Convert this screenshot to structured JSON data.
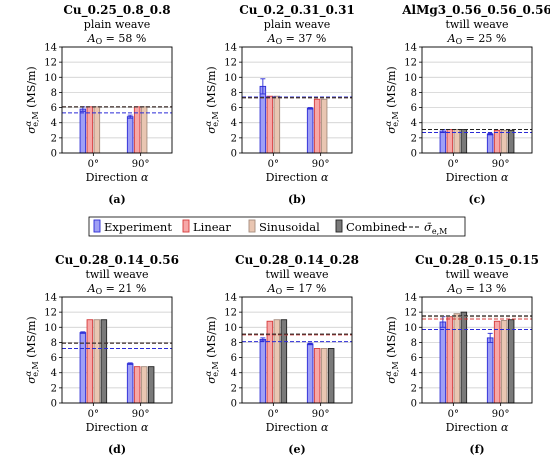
{
  "series_styles": [
    {
      "name": "Experiment",
      "fill": "#9f9ff5",
      "stroke": "#2b2bd6"
    },
    {
      "name": "Linear",
      "fill": "#f7a7a7",
      "stroke": "#d43a3a"
    },
    {
      "name": "Sinusoidal",
      "fill": "#e9c6b2",
      "stroke": "#a58c7e"
    },
    {
      "name": "Combined",
      "fill": "#7a7a7a",
      "stroke": "#222222"
    }
  ],
  "legend": {
    "entries": [
      "Experiment",
      "Linear",
      "Sinusoidal",
      "Combined"
    ],
    "mean_label": "σ̄e,M",
    "mean_color": "#000000"
  },
  "chart_data": [
    {
      "type": "bar",
      "panel_label": "(a)",
      "title": "Cu_0.25_0.8_0.8",
      "subtitle": "plain weave",
      "area_label": "AO = 58 %",
      "categories": [
        "0°",
        "90°"
      ],
      "xlabel": "Direction α",
      "ylabel": "σαe,M (MS/m)",
      "ylim": [
        0,
        14
      ],
      "yticks": [
        0,
        2,
        4,
        6,
        8,
        10,
        12,
        14
      ],
      "grid": true,
      "series": [
        {
          "name": "Experiment",
          "values": [
            5.8,
            4.8
          ],
          "errors": [
            0.3,
            0.2
          ]
        },
        {
          "name": "Linear",
          "values": [
            6.1,
            6.1
          ],
          "errors": [
            0,
            0
          ]
        },
        {
          "name": "Sinusoidal",
          "values": [
            6.1,
            6.1
          ],
          "errors": [
            0,
            0
          ]
        },
        {
          "name": "Combined",
          "values": [
            0,
            0
          ],
          "errors": [
            0,
            0
          ]
        }
      ],
      "mean_lines": [
        {
          "series": "Experiment",
          "value": 5.3
        },
        {
          "series": "Linear",
          "value": 6.1
        },
        {
          "series": "Sinusoidal",
          "value": 6.1
        },
        {
          "series": "Combined",
          "value": 6.1
        }
      ]
    },
    {
      "type": "bar",
      "panel_label": "(b)",
      "title": "Cu_0.2_0.31_0.31",
      "subtitle": "plain weave",
      "area_label": "AO = 37 %",
      "categories": [
        "0°",
        "90°"
      ],
      "xlabel": "Direction α",
      "ylabel": "σαe,M (MS/m)",
      "ylim": [
        0,
        14
      ],
      "yticks": [
        0,
        2,
        4,
        6,
        8,
        10,
        12,
        14
      ],
      "grid": true,
      "series": [
        {
          "name": "Experiment",
          "values": [
            8.8,
            5.9
          ],
          "errors": [
            1.0,
            0.1
          ]
        },
        {
          "name": "Linear",
          "values": [
            7.5,
            7.1
          ],
          "errors": [
            0,
            0
          ]
        },
        {
          "name": "Sinusoidal",
          "values": [
            7.5,
            7.1
          ],
          "errors": [
            0,
            0
          ]
        },
        {
          "name": "Combined",
          "values": [
            0,
            0
          ],
          "errors": [
            0,
            0
          ]
        }
      ],
      "mean_lines": [
        {
          "series": "Experiment",
          "value": 7.4
        },
        {
          "series": "Linear",
          "value": 7.3
        },
        {
          "series": "Sinusoidal",
          "value": 7.3
        },
        {
          "series": "Combined",
          "value": 7.3
        }
      ]
    },
    {
      "type": "bar",
      "panel_label": "(c)",
      "title": "AlMg3_0.56_0.56_0.56",
      "subtitle": "twill weave",
      "area_label": "AO = 25 %",
      "categories": [
        "0°",
        "90°"
      ],
      "xlabel": "Direction α",
      "ylabel": "σαe,M (MS/m)",
      "ylim": [
        0,
        14
      ],
      "yticks": [
        0,
        2,
        4,
        6,
        8,
        10,
        12,
        14
      ],
      "grid": true,
      "series": [
        {
          "name": "Experiment",
          "values": [
            2.9,
            2.5
          ],
          "errors": [
            0.2,
            0.1
          ]
        },
        {
          "name": "Linear",
          "values": [
            3.1,
            3.0
          ],
          "errors": [
            0,
            0
          ]
        },
        {
          "name": "Sinusoidal",
          "values": [
            3.1,
            3.0
          ],
          "errors": [
            0,
            0
          ]
        },
        {
          "name": "Combined",
          "values": [
            3.1,
            3.0
          ],
          "errors": [
            0,
            0
          ]
        }
      ],
      "mean_lines": [
        {
          "series": "Experiment",
          "value": 2.7
        },
        {
          "series": "Linear",
          "value": 3.1
        },
        {
          "series": "Sinusoidal",
          "value": 3.1
        },
        {
          "series": "Combined",
          "value": 3.1
        }
      ]
    },
    {
      "type": "bar",
      "panel_label": "(d)",
      "title": "Cu_0.28_0.14_0.56",
      "subtitle": "twill weave",
      "area_label": "AO = 21 %",
      "categories": [
        "0°",
        "90°"
      ],
      "xlabel": "Direction α",
      "ylabel": "σαe,M (MS/m)",
      "ylim": [
        0,
        14
      ],
      "yticks": [
        0,
        2,
        4,
        6,
        8,
        10,
        12,
        14
      ],
      "grid": true,
      "series": [
        {
          "name": "Experiment",
          "values": [
            9.3,
            5.2
          ],
          "errors": [
            0.1,
            0.1
          ]
        },
        {
          "name": "Linear",
          "values": [
            11.0,
            4.8
          ],
          "errors": [
            0,
            0
          ]
        },
        {
          "name": "Sinusoidal",
          "values": [
            11.0,
            4.8
          ],
          "errors": [
            0,
            0
          ]
        },
        {
          "name": "Combined",
          "values": [
            11.0,
            4.8
          ],
          "errors": [
            0,
            0
          ]
        }
      ],
      "mean_lines": [
        {
          "series": "Experiment",
          "value": 7.2
        },
        {
          "series": "Linear",
          "value": 7.9
        },
        {
          "series": "Sinusoidal",
          "value": 7.9
        },
        {
          "series": "Combined",
          "value": 7.9
        }
      ]
    },
    {
      "type": "bar",
      "panel_label": "(e)",
      "title": "Cu_0.28_0.14_0.28",
      "subtitle": "twill weave",
      "area_label": "AO = 17 %",
      "categories": [
        "0°",
        "90°"
      ],
      "xlabel": "Direction α",
      "ylabel": "σαe,M (MS/m)",
      "ylim": [
        0,
        14
      ],
      "yticks": [
        0,
        2,
        4,
        6,
        8,
        10,
        12,
        14
      ],
      "grid": true,
      "series": [
        {
          "name": "Experiment",
          "values": [
            8.4,
            7.8
          ],
          "errors": [
            0.2,
            0.1
          ]
        },
        {
          "name": "Linear",
          "values": [
            10.8,
            7.2
          ],
          "errors": [
            0,
            0
          ]
        },
        {
          "name": "Sinusoidal",
          "values": [
            11.0,
            7.2
          ],
          "errors": [
            0,
            0
          ]
        },
        {
          "name": "Combined",
          "values": [
            11.0,
            7.2
          ],
          "errors": [
            0,
            0
          ]
        }
      ],
      "mean_lines": [
        {
          "series": "Experiment",
          "value": 8.1
        },
        {
          "series": "Linear",
          "value": 9.0
        },
        {
          "series": "Sinusoidal",
          "value": 9.1
        },
        {
          "series": "Combined",
          "value": 9.1
        }
      ]
    },
    {
      "type": "bar",
      "panel_label": "(f)",
      "title": "Cu_0.28_0.15_0.15",
      "subtitle": "twill weave",
      "area_label": "AO = 13 %",
      "categories": [
        "0°",
        "90°"
      ],
      "xlabel": "Direction α",
      "ylabel": "σαe,M (MS/m)",
      "ylim": [
        0,
        14
      ],
      "yticks": [
        0,
        2,
        4,
        6,
        8,
        10,
        12,
        14
      ],
      "grid": true,
      "series": [
        {
          "name": "Experiment",
          "values": [
            10.7,
            8.6
          ],
          "errors": [
            0.7,
            0.6
          ]
        },
        {
          "name": "Linear",
          "values": [
            11.4,
            10.8
          ],
          "errors": [
            0,
            0
          ]
        },
        {
          "name": "Sinusoidal",
          "values": [
            11.8,
            10.9
          ],
          "errors": [
            0,
            0
          ]
        },
        {
          "name": "Combined",
          "values": [
            12.0,
            11.0
          ],
          "errors": [
            0,
            0
          ]
        }
      ],
      "mean_lines": [
        {
          "series": "Experiment",
          "value": 9.7
        },
        {
          "series": "Linear",
          "value": 11.1
        },
        {
          "series": "Sinusoidal",
          "value": 11.4
        },
        {
          "series": "Combined",
          "value": 11.5
        }
      ]
    }
  ]
}
